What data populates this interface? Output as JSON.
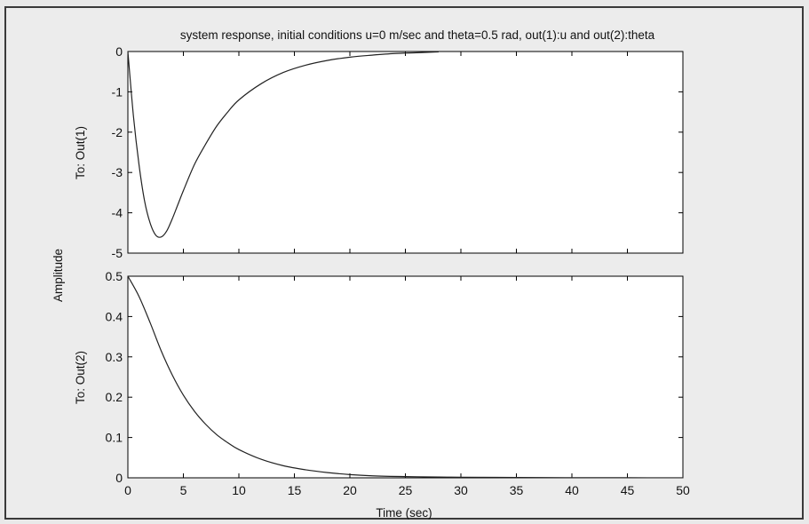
{
  "chart_data": {
    "type": "line",
    "title": "system response, initial conditions u=0 m/sec and theta=0.5 rad, out(1):u and out(2):theta",
    "xlabel": "Time (sec)",
    "ylabel": "Amplitude",
    "xlim": [
      0,
      50
    ],
    "x_ticks": [
      0,
      5,
      10,
      15,
      20,
      25,
      30,
      35,
      40,
      45,
      50
    ],
    "grid": false,
    "subplots": [
      {
        "ylabel": "To: Out(1)",
        "ylim": [
          -5,
          0
        ],
        "y_ticks": [
          0,
          -1,
          -2,
          -3,
          -4,
          -5
        ],
        "series": [
          {
            "x": [
              0,
              0.5,
              1,
              1.5,
              2,
              2.5,
              3,
              3.5,
              4,
              4.5,
              5,
              6,
              7,
              8,
              9,
              10,
              12,
              14,
              16,
              18,
              20,
              22,
              24,
              26,
              28
            ],
            "y": [
              0,
              -1.6,
              -2.8,
              -3.7,
              -4.25,
              -4.55,
              -4.6,
              -4.45,
              -4.15,
              -3.8,
              -3.45,
              -2.8,
              -2.3,
              -1.85,
              -1.5,
              -1.2,
              -0.8,
              -0.52,
              -0.34,
              -0.22,
              -0.14,
              -0.09,
              -0.05,
              -0.03,
              -0.01
            ]
          }
        ]
      },
      {
        "ylabel": "To: Out(2)",
        "ylim": [
          0,
          0.5
        ],
        "y_ticks": [
          0.5,
          0.4,
          0.3,
          0.2,
          0.1,
          0
        ],
        "series": [
          {
            "x": [
              0,
              1,
              2,
              3,
              4,
              5,
              6,
              7,
              8,
              9,
              10,
              12,
              14,
              16,
              18,
              20,
              22,
              25,
              28,
              30,
              35,
              40,
              45,
              50
            ],
            "y": [
              0.5,
              0.45,
              0.385,
              0.315,
              0.255,
              0.205,
              0.165,
              0.133,
              0.107,
              0.087,
              0.07,
              0.046,
              0.03,
              0.02,
              0.013,
              0.008,
              0.005,
              0.003,
              0.002,
              0.0015,
              0.0008,
              0.0004,
              0.0002,
              0.0001
            ]
          }
        ]
      }
    ]
  }
}
